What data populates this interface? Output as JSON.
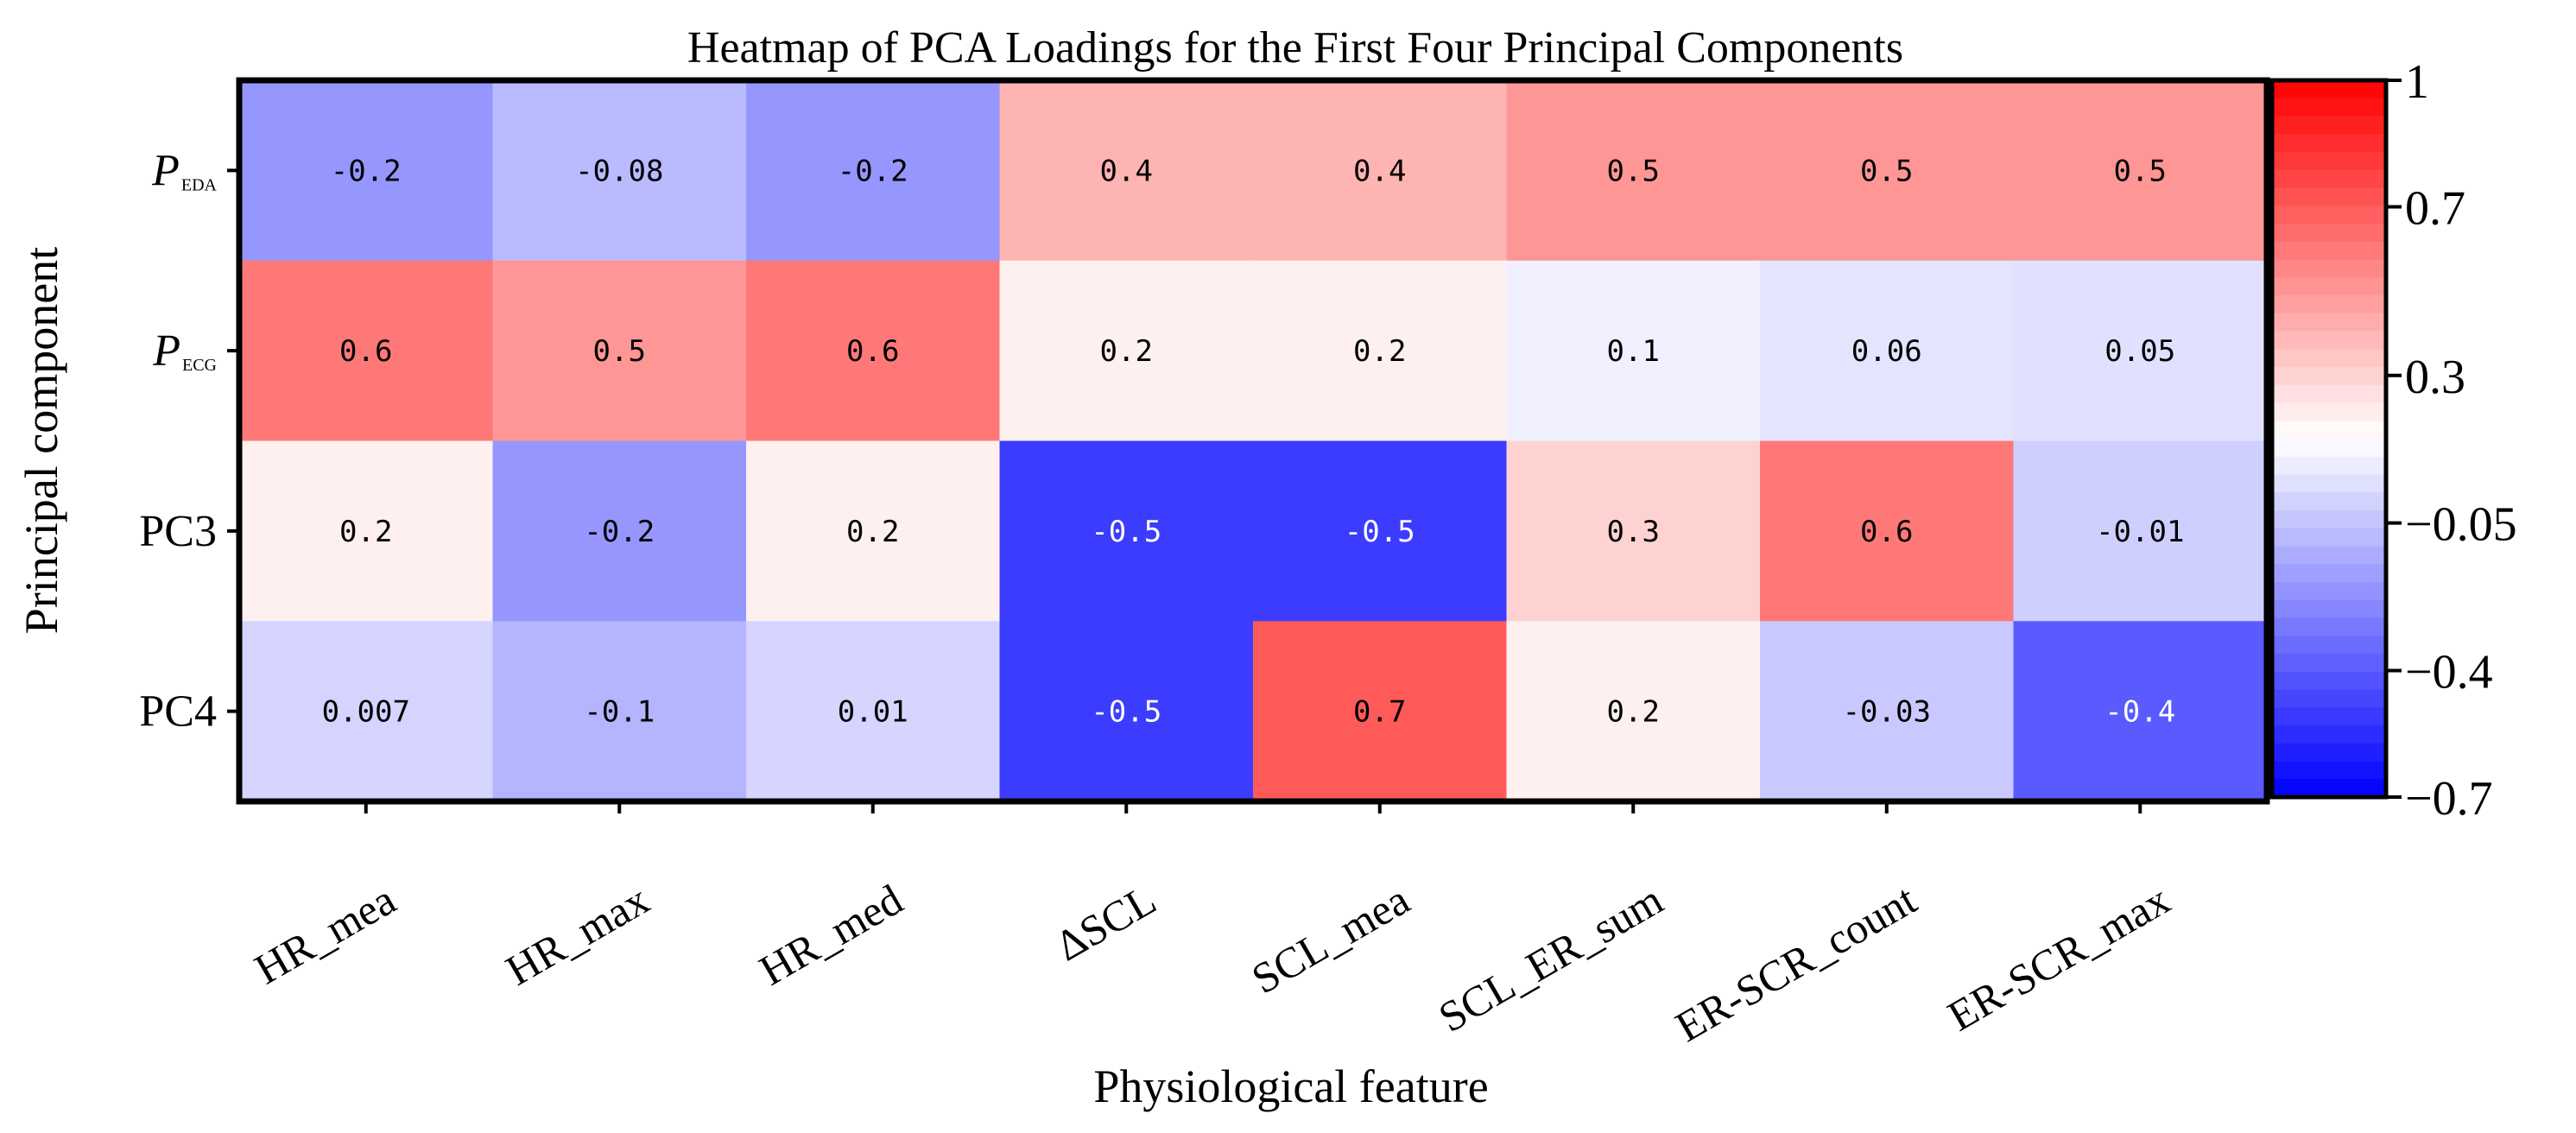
{
  "chart_data": {
    "type": "heatmap",
    "title": "Heatmap of PCA Loadings for the First Four Principal Components",
    "xlabel": "Physiological feature",
    "ylabel": "Principal component",
    "columns": [
      "HR_mea",
      "HR_max",
      "HR_med",
      "ΔSCL",
      "SCL_mea",
      "SCL_ER_sum",
      "ER-SCR_count",
      "ER-SCR_max"
    ],
    "rows": [
      {
        "main": "P",
        "sub": "EDA",
        "italic": true
      },
      {
        "main": "P",
        "sub": "ECG",
        "italic": true
      },
      {
        "main": "PC3",
        "sub": "",
        "italic": false
      },
      {
        "main": "PC4",
        "sub": "",
        "italic": false
      }
    ],
    "values": [
      [
        -0.2,
        -0.08,
        -0.2,
        0.4,
        0.4,
        0.5,
        0.5,
        0.5
      ],
      [
        0.6,
        0.5,
        0.6,
        0.2,
        0.2,
        0.1,
        0.06,
        0.05
      ],
      [
        0.2,
        -0.2,
        0.2,
        -0.5,
        -0.5,
        0.3,
        0.6,
        -0.01
      ],
      [
        0.007,
        -0.1,
        0.01,
        -0.5,
        0.7,
        0.2,
        -0.03,
        -0.4
      ]
    ],
    "labels": [
      [
        "-0.2",
        "-0.08",
        "-0.2",
        "0.4",
        "0.4",
        "0.5",
        "0.5",
        "0.5"
      ],
      [
        "0.6",
        "0.5",
        "0.6",
        "0.2",
        "0.2",
        "0.1",
        "0.06",
        "0.05"
      ],
      [
        "0.2",
        "-0.2",
        "0.2",
        "-0.5",
        "-0.5",
        "0.3",
        "0.6",
        "-0.01"
      ],
      [
        "0.007",
        "-0.1",
        "0.01",
        "-0.5",
        "0.7",
        "0.2",
        "-0.03",
        "-0.4"
      ]
    ],
    "colorbar": {
      "min": -0.7,
      "max": 1,
      "center": 0.15,
      "ticks": [
        1,
        0.7,
        0.3,
        -0.05,
        -0.4,
        -0.7
      ],
      "tick_labels": [
        "1",
        "0.7",
        "0.3",
        "−0.05",
        "−0.4",
        "−0.7"
      ],
      "levels": 40,
      "low_color": "#0000ff",
      "mid_color": "#ffffff",
      "high_color": "#ff0000"
    }
  }
}
